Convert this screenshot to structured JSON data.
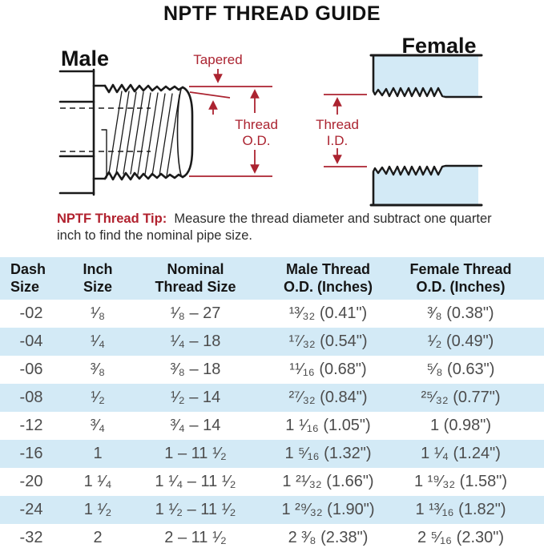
{
  "title": "NPTF THREAD GUIDE",
  "colors": {
    "accent_red": "#ab2330",
    "light_blue": "#d3eaf6",
    "line_black": "#1a1a1a",
    "data_text": "#4c4c4c"
  },
  "diagram": {
    "male_label": "Male",
    "female_label": "Female",
    "tapered_label": "Tapered",
    "thread_od": {
      "line1": "Thread",
      "line2": "O.D."
    },
    "thread_id": {
      "line1": "Thread",
      "line2": "I.D."
    }
  },
  "tip": {
    "label": "NPTF Thread Tip:",
    "text": "Measure the thread diameter and subtract one quarter inch to find the nominal pipe size."
  },
  "table": {
    "headers": [
      {
        "line1": "Dash",
        "line2": "Size"
      },
      {
        "line1": "Inch",
        "line2": "Size"
      },
      {
        "line1": "Nominal",
        "line2": "Thread Size"
      },
      {
        "line1": "Male Thread",
        "line2": "O.D. (Inches)"
      },
      {
        "line1": "Female Thread",
        "line2": "O.D. (Inches)"
      }
    ],
    "rows": [
      [
        "-02",
        "¹⁄₈",
        "¹⁄₈ – 27",
        "¹³⁄₃₂ (0.41\")",
        "³⁄₈ (0.38\")"
      ],
      [
        "-04",
        "¹⁄₄",
        "¹⁄₄ – 18",
        "¹⁷⁄₃₂ (0.54\")",
        "¹⁄₂ (0.49\")"
      ],
      [
        "-06",
        "³⁄₈",
        "³⁄₈ – 18",
        "¹¹⁄₁₆ (0.68\")",
        "⁵⁄₈ (0.63\")"
      ],
      [
        "-08",
        "¹⁄₂",
        "¹⁄₂ – 14",
        "²⁷⁄₃₂ (0.84\")",
        "²⁵⁄₃₂ (0.77\")"
      ],
      [
        "-12",
        "³⁄₄",
        "³⁄₄ – 14",
        "1 ¹⁄₁₆ (1.05\")",
        "1 (0.98\")"
      ],
      [
        "-16",
        "1",
        "1 – 11 ¹⁄₂",
        "1 ⁵⁄₁₆ (1.32\")",
        "1 ¹⁄₄ (1.24\")"
      ],
      [
        "-20",
        "1 ¹⁄₄",
        "1 ¹⁄₄ – 11 ¹⁄₂",
        "1 ²¹⁄₃₂ (1.66\")",
        "1 ¹⁹⁄₃₂ (1.58\")"
      ],
      [
        "-24",
        "1 ¹⁄₂",
        "1 ¹⁄₂ – 11 ¹⁄₂",
        "1 ²⁹⁄₃₂ (1.90\")",
        "1 ¹³⁄₁₆ (1.82\")"
      ],
      [
        "-32",
        "2",
        "2 – 11 ¹⁄₂",
        "2 ³⁄₈ (2.38\")",
        "2 ⁵⁄₁₆ (2.30\")"
      ]
    ]
  }
}
